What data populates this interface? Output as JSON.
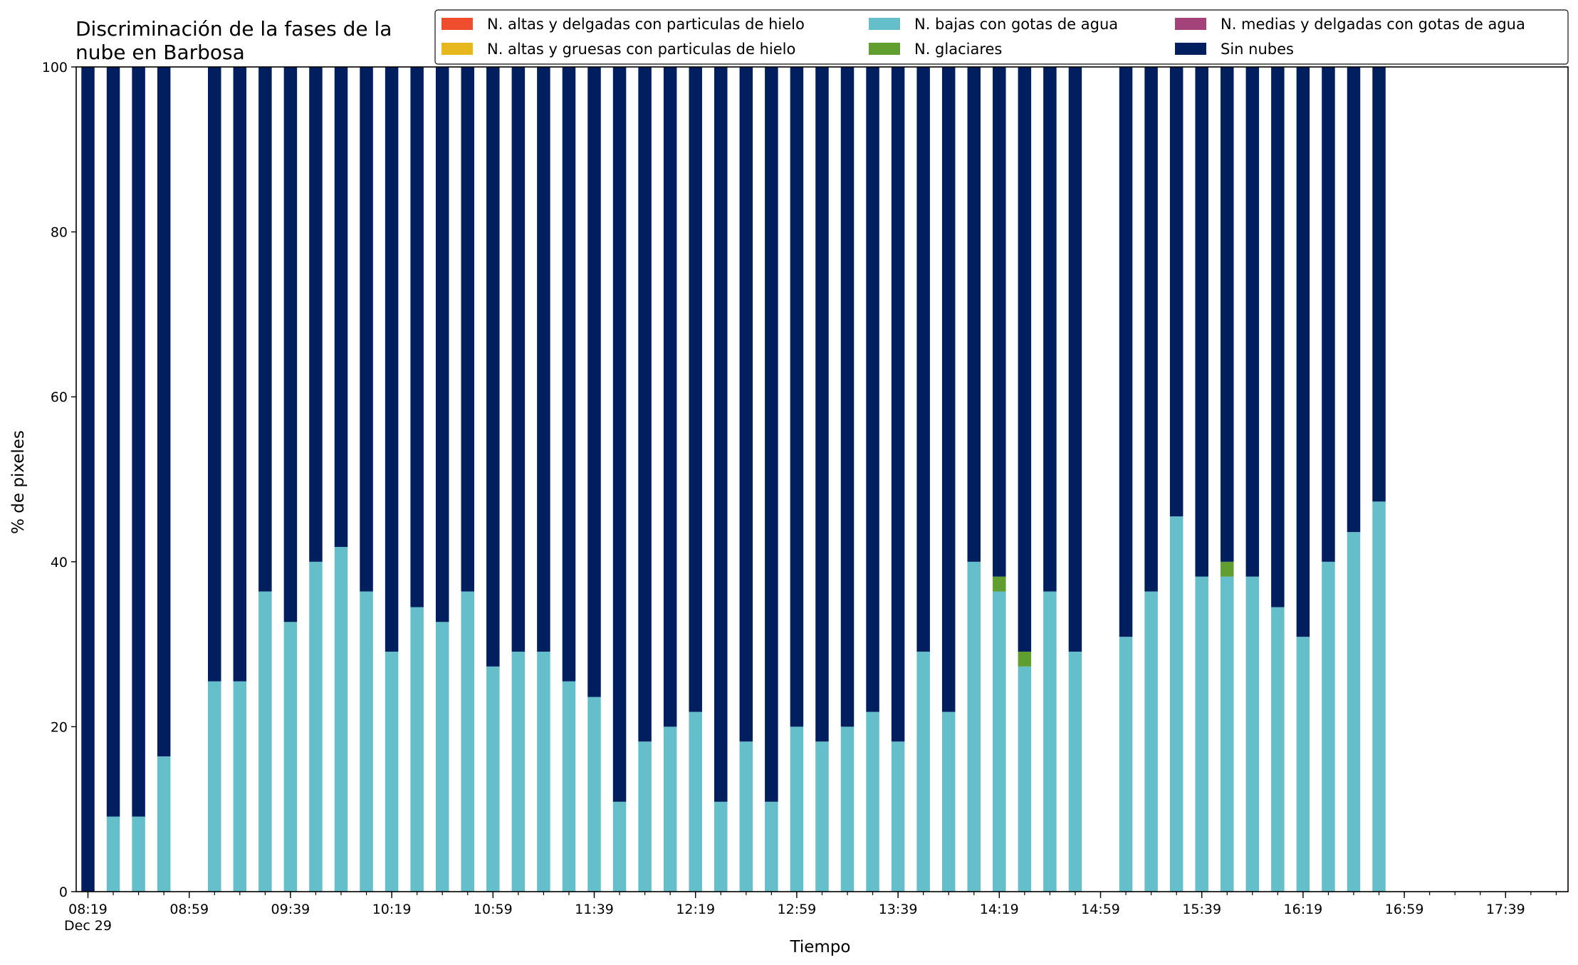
{
  "chart_data": {
    "type": "bar",
    "stacked": true,
    "title": "Discriminación de la fases de la\nnube en Barbosa",
    "xlabel": "Tiempo",
    "ylabel": "% de pixeles",
    "ylim": [
      0,
      100
    ],
    "yticks": [
      0,
      20,
      40,
      60,
      80,
      100
    ],
    "x_start": "08:19",
    "x_step_minutes": 10,
    "x_major_labels": [
      "08:19",
      "08:59",
      "09:39",
      "10:19",
      "10:59",
      "11:39",
      "12:19",
      "12:59",
      "13:39",
      "14:19",
      "14:59",
      "15:39",
      "16:19",
      "16:59",
      "17:39"
    ],
    "x_date_label": "Dec 29",
    "x_minor_tick_count": 59,
    "grid": false,
    "legend_position": "top-right",
    "legend_columns": 3,
    "categories": [
      "08:19",
      "08:29",
      "08:39",
      "08:49",
      "08:59",
      "09:09",
      "09:19",
      "09:29",
      "09:39",
      "09:49",
      "09:59",
      "10:09",
      "10:19",
      "10:29",
      "10:39",
      "10:49",
      "10:59",
      "11:09",
      "11:19",
      "11:29",
      "11:39",
      "11:49",
      "11:59",
      "12:09",
      "12:19",
      "12:29",
      "12:39",
      "12:49",
      "12:59",
      "13:09",
      "13:19",
      "13:29",
      "13:39",
      "13:49",
      "13:59",
      "14:09",
      "14:19",
      "14:29",
      "14:39",
      "14:49",
      "14:59",
      "15:09",
      "15:19",
      "15:29",
      "15:39",
      "15:49",
      "15:59",
      "16:09",
      "16:19",
      "16:29",
      "16:39",
      "16:49",
      "16:59",
      "17:09",
      "17:19",
      "17:29",
      "17:39",
      "17:49",
      "17:59"
    ],
    "series": [
      {
        "name": "N. altas y delgadas con particulas de hielo",
        "color": "#ee4d2e",
        "values": [
          0,
          0,
          0,
          0,
          null,
          0,
          0,
          0,
          0,
          0,
          0,
          0,
          0,
          0,
          0,
          0,
          0,
          0,
          0,
          0,
          0,
          0,
          0,
          0,
          0,
          0,
          0,
          0,
          0,
          0,
          0,
          0,
          0,
          0,
          0,
          0,
          0,
          0,
          0,
          0,
          null,
          0,
          0,
          0,
          0,
          0,
          0,
          0,
          0,
          0,
          0,
          0,
          null,
          null,
          null,
          null,
          null,
          null,
          null
        ]
      },
      {
        "name": "N. altas y gruesas con particulas de hielo",
        "color": "#e6b81e",
        "values": [
          0,
          0,
          0,
          0,
          null,
          0,
          0,
          0,
          0,
          0,
          0,
          0,
          0,
          0,
          0,
          0,
          0,
          0,
          0,
          0,
          0,
          0,
          0,
          0,
          0,
          0,
          0,
          0,
          0,
          0,
          0,
          0,
          0,
          0,
          0,
          0,
          0,
          0,
          0,
          0,
          null,
          0,
          0,
          0,
          0,
          0,
          0,
          0,
          0,
          0,
          0,
          0,
          null,
          null,
          null,
          null,
          null,
          null,
          null
        ]
      },
      {
        "name": "N. bajas con gotas de agua",
        "color": "#65bfcb",
        "values": [
          0,
          9.1,
          9.1,
          16.4,
          null,
          25.5,
          25.5,
          36.4,
          32.7,
          40.0,
          41.8,
          36.4,
          29.1,
          34.5,
          32.7,
          36.4,
          27.3,
          29.1,
          29.1,
          25.5,
          23.6,
          10.9,
          18.2,
          20.0,
          21.8,
          10.9,
          18.2,
          10.9,
          20.0,
          18.2,
          20.0,
          21.8,
          18.2,
          29.1,
          21.8,
          40.0,
          36.4,
          27.3,
          36.4,
          29.1,
          null,
          30.9,
          36.4,
          45.5,
          38.2,
          38.2,
          38.2,
          34.5,
          30.9,
          40.0,
          43.6,
          47.3,
          null,
          null,
          null,
          null,
          null,
          null,
          null
        ]
      },
      {
        "name": "N. glaciares",
        "color": "#5f9e2f",
        "values": [
          0,
          0,
          0,
          0,
          null,
          0,
          0,
          0,
          0,
          0,
          0,
          0,
          0,
          0,
          0,
          0,
          0,
          0,
          0,
          0,
          0,
          0,
          0,
          0,
          0,
          0,
          0,
          0,
          0,
          0,
          0,
          0,
          0,
          0,
          0,
          0,
          1.8,
          1.8,
          0,
          0,
          null,
          0,
          0,
          0,
          0,
          1.8,
          0,
          0,
          0,
          0,
          0,
          0,
          null,
          null,
          null,
          null,
          null,
          null,
          null
        ]
      },
      {
        "name": "N. medias y delgadas con gotas de agua",
        "color": "#a3437a",
        "values": [
          0,
          0,
          0,
          0,
          null,
          0,
          0,
          0,
          0,
          0,
          0,
          0,
          0,
          0,
          0,
          0,
          0,
          0,
          0,
          0,
          0,
          0,
          0,
          0,
          0,
          0,
          0,
          0,
          0,
          0,
          0,
          0,
          0,
          0,
          0,
          0,
          0,
          0,
          0,
          0,
          null,
          0,
          0,
          0,
          0,
          0,
          0,
          0,
          0,
          0,
          0,
          0,
          null,
          null,
          null,
          null,
          null,
          null,
          null
        ]
      },
      {
        "name": "Sin nubes",
        "color": "#011f5e",
        "values": [
          100,
          90.9,
          90.9,
          83.6,
          null,
          74.5,
          74.5,
          63.6,
          67.3,
          60.0,
          58.2,
          63.6,
          70.9,
          65.5,
          67.3,
          63.6,
          72.7,
          70.9,
          70.9,
          74.5,
          76.4,
          89.1,
          81.8,
          80.0,
          78.2,
          89.1,
          81.8,
          89.1,
          80.0,
          81.8,
          80.0,
          78.2,
          81.8,
          70.9,
          78.2,
          60.0,
          61.8,
          70.9,
          63.6,
          70.9,
          null,
          69.1,
          63.6,
          54.5,
          61.8,
          60.0,
          61.8,
          65.5,
          69.1,
          60.0,
          56.4,
          52.7,
          null,
          null,
          null,
          null,
          null,
          null,
          null
        ]
      }
    ]
  }
}
